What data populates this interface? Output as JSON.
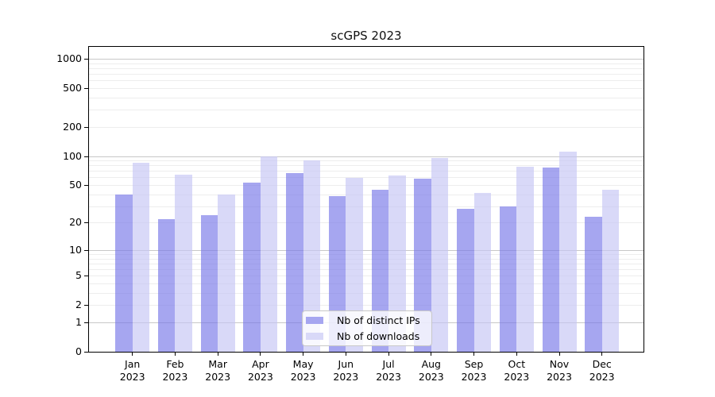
{
  "figure": {
    "title": "scGPS 2023"
  },
  "colors": {
    "ips_bar": "#a6a6f0",
    "downloads_bar": "#d9d9f8",
    "bar_fill_ips": "rgba(118,118,232,0.65)",
    "bar_fill_downloads": "rgba(196,196,244,0.65)",
    "grid_major": "#c8c8c8",
    "grid_minor": "#ededed",
    "axis": "#000000",
    "legend_border": "#c8c8c8"
  },
  "y_axis": {
    "scale": "log1p",
    "labeled_ticks": [
      0,
      1,
      2,
      5,
      10,
      20,
      50,
      100,
      200,
      500,
      1000
    ],
    "major_gridlines": [
      1,
      10,
      100,
      1000
    ],
    "minor_gridlines": [
      2,
      3,
      4,
      5,
      6,
      7,
      8,
      9,
      20,
      30,
      40,
      50,
      60,
      70,
      80,
      90,
      200,
      300,
      400,
      500,
      600,
      700,
      800,
      900
    ]
  },
  "legend": {
    "items": [
      {
        "label": "Nb of distinct IPs",
        "color_key": "ips_bar"
      },
      {
        "label": "Nb of downloads",
        "color_key": "downloads_bar"
      }
    ]
  },
  "chart_data": {
    "type": "bar",
    "title": "scGPS 2023",
    "categories": [
      "Jan 2023",
      "Feb 2023",
      "Mar 2023",
      "Apr 2023",
      "May 2023",
      "Jun 2023",
      "Jul 2023",
      "Aug 2023",
      "Sep 2023",
      "Oct 2023",
      "Nov 2023",
      "Dec 2023"
    ],
    "series": [
      {
        "name": "Nb of distinct IPs",
        "values": [
          40,
          22,
          24,
          53,
          67,
          38,
          45,
          58,
          28,
          30,
          76,
          23
        ]
      },
      {
        "name": "Nb of downloads",
        "values": [
          85,
          64,
          40,
          100,
          91,
          59,
          63,
          96,
          41,
          77,
          112,
          45
        ]
      }
    ],
    "yscale": "log1p",
    "ylim": [
      0,
      1000
    ],
    "yticks": [
      0,
      1,
      2,
      5,
      10,
      20,
      50,
      100,
      200,
      500,
      1000
    ],
    "grid": "horizontal",
    "legend_position": "lower center inside"
  }
}
